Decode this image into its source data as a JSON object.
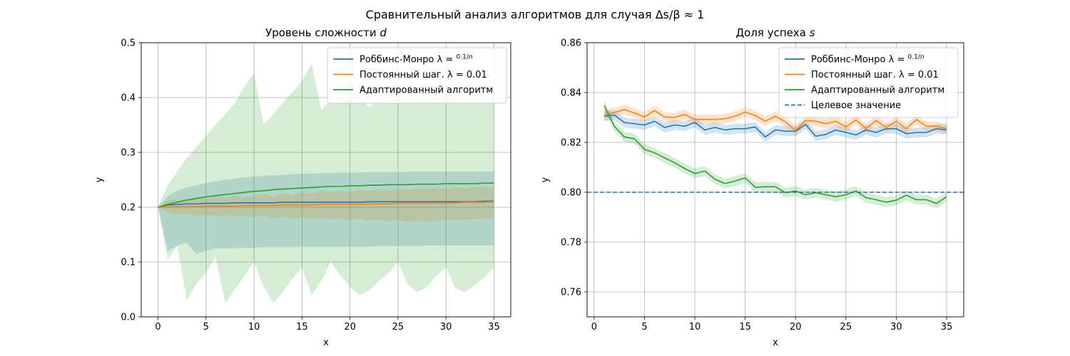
{
  "figure": {
    "suptitle": "Сравнительный анализ алгоритмов для случая Δs/β ≈ 1"
  },
  "colors": {
    "blue": "#1f77b4",
    "orange": "#ff7f0e",
    "green": "#2ca02c",
    "grid": "#b0b0b0",
    "axis": "#000000"
  },
  "chart_data": [
    {
      "type": "line",
      "title": "Уровень сложности d",
      "xlabel": "x",
      "ylabel": "y",
      "xlim": [
        -1.75,
        36.75
      ],
      "ylim": [
        0.0,
        0.5
      ],
      "xticks": [
        0,
        5,
        10,
        15,
        20,
        25,
        30,
        35
      ],
      "yticks": [
        0.0,
        0.1,
        0.2,
        0.3,
        0.4,
        0.5
      ],
      "ytick_labels": [
        "0.0",
        "0.1",
        "0.2",
        "0.3",
        "0.4",
        "0.5"
      ],
      "grid": true,
      "legend_position": "upper right",
      "series": [
        {
          "name": "Роббинс-Монро λ = 0.1/n",
          "color": "#1f77b4",
          "x": [
            0,
            1,
            2,
            3,
            4,
            5,
            6,
            7,
            8,
            9,
            10,
            11,
            12,
            13,
            14,
            15,
            16,
            17,
            18,
            19,
            20,
            21,
            22,
            23,
            24,
            25,
            26,
            27,
            28,
            29,
            30,
            31,
            32,
            33,
            34,
            35
          ],
          "values": [
            0.2,
            0.204,
            0.205,
            0.206,
            0.206,
            0.207,
            0.207,
            0.207,
            0.208,
            0.208,
            0.208,
            0.208,
            0.208,
            0.209,
            0.209,
            0.209,
            0.209,
            0.209,
            0.209,
            0.209,
            0.209,
            0.209,
            0.21,
            0.21,
            0.21,
            0.21,
            0.21,
            0.21,
            0.21,
            0.21,
            0.21,
            0.21,
            0.21,
            0.21,
            0.211,
            0.211
          ],
          "band_upper": [
            0.2,
            0.22,
            0.23,
            0.236,
            0.24,
            0.244,
            0.247,
            0.25,
            0.252,
            0.254,
            0.256,
            0.257,
            0.258,
            0.259,
            0.26,
            0.261,
            0.261,
            0.262,
            0.262,
            0.263,
            0.263,
            0.263,
            0.264,
            0.264,
            0.264,
            0.264,
            0.265,
            0.265,
            0.265,
            0.265,
            0.265,
            0.265,
            0.265,
            0.265,
            0.265,
            0.265
          ],
          "band_lower": [
            0.2,
            0.12,
            0.13,
            0.135,
            0.115,
            0.12,
            0.125,
            0.125,
            0.125,
            0.126,
            0.126,
            0.127,
            0.127,
            0.127,
            0.127,
            0.128,
            0.128,
            0.128,
            0.128,
            0.128,
            0.128,
            0.128,
            0.128,
            0.129,
            0.129,
            0.129,
            0.129,
            0.129,
            0.13,
            0.13,
            0.13,
            0.13,
            0.13,
            0.13,
            0.13,
            0.13
          ]
        },
        {
          "name": "Постоянный шаг. λ = 0.01",
          "color": "#ff7f0e",
          "x": [
            0,
            1,
            2,
            3,
            4,
            5,
            6,
            7,
            8,
            9,
            10,
            11,
            12,
            13,
            14,
            15,
            16,
            17,
            18,
            19,
            20,
            21,
            22,
            23,
            24,
            25,
            26,
            27,
            28,
            29,
            30,
            31,
            32,
            33,
            34,
            35
          ],
          "values": [
            0.2,
            0.2,
            0.201,
            0.201,
            0.201,
            0.202,
            0.202,
            0.202,
            0.202,
            0.203,
            0.203,
            0.203,
            0.203,
            0.204,
            0.204,
            0.204,
            0.204,
            0.205,
            0.205,
            0.205,
            0.205,
            0.205,
            0.206,
            0.206,
            0.206,
            0.207,
            0.207,
            0.207,
            0.207,
            0.208,
            0.208,
            0.208,
            0.209,
            0.209,
            0.209,
            0.21
          ],
          "band_upper": [
            0.2,
            0.212,
            0.215,
            0.214,
            0.218,
            0.215,
            0.22,
            0.217,
            0.222,
            0.218,
            0.221,
            0.224,
            0.22,
            0.226,
            0.222,
            0.228,
            0.225,
            0.23,
            0.227,
            0.23,
            0.228,
            0.232,
            0.229,
            0.233,
            0.23,
            0.234,
            0.231,
            0.235,
            0.232,
            0.236,
            0.233,
            0.237,
            0.234,
            0.237,
            0.235,
            0.238
          ],
          "band_lower": [
            0.2,
            0.19,
            0.186,
            0.188,
            0.184,
            0.187,
            0.183,
            0.186,
            0.182,
            0.185,
            0.181,
            0.184,
            0.18,
            0.183,
            0.179,
            0.182,
            0.178,
            0.181,
            0.177,
            0.18,
            0.176,
            0.179,
            0.175,
            0.178,
            0.174,
            0.177,
            0.173,
            0.176,
            0.172,
            0.175,
            0.178,
            0.176,
            0.177,
            0.178,
            0.179,
            0.18
          ]
        },
        {
          "name": "Адаптированный алгоритм",
          "color": "#2ca02c",
          "x": [
            0,
            1,
            2,
            3,
            4,
            5,
            6,
            7,
            8,
            9,
            10,
            11,
            12,
            13,
            14,
            15,
            16,
            17,
            18,
            19,
            20,
            21,
            22,
            23,
            24,
            25,
            26,
            27,
            28,
            29,
            30,
            31,
            32,
            33,
            34,
            35
          ],
          "values": [
            0.2,
            0.205,
            0.209,
            0.213,
            0.216,
            0.219,
            0.221,
            0.223,
            0.225,
            0.227,
            0.229,
            0.23,
            0.232,
            0.233,
            0.234,
            0.235,
            0.236,
            0.237,
            0.238,
            0.238,
            0.239,
            0.239,
            0.24,
            0.24,
            0.241,
            0.241,
            0.241,
            0.242,
            0.242,
            0.242,
            0.243,
            0.243,
            0.243,
            0.243,
            0.244,
            0.244
          ],
          "band_upper": [
            0.2,
            0.24,
            0.265,
            0.29,
            0.31,
            0.33,
            0.35,
            0.37,
            0.39,
            0.42,
            0.445,
            0.35,
            0.37,
            0.39,
            0.41,
            0.43,
            0.462,
            0.378,
            0.395,
            0.39,
            0.4,
            0.398,
            0.382,
            0.4,
            0.395,
            0.397,
            0.4,
            0.398,
            0.397,
            0.401,
            0.399,
            0.4,
            0.398,
            0.397,
            0.399,
            0.4
          ],
          "band_lower": [
            0.2,
            0.105,
            0.13,
            0.03,
            0.06,
            0.08,
            0.11,
            0.025,
            0.05,
            0.075,
            0.1,
            0.055,
            0.025,
            0.045,
            0.07,
            0.09,
            0.04,
            0.065,
            0.1,
            0.075,
            0.055,
            0.04,
            0.048,
            0.065,
            0.08,
            0.1,
            0.06,
            0.045,
            0.055,
            0.075,
            0.09,
            0.052,
            0.045,
            0.058,
            0.072,
            0.09
          ]
        }
      ]
    },
    {
      "type": "line",
      "title": "Доля успеха s",
      "xlabel": "x",
      "ylabel": "y",
      "xlim": [
        -0.7,
        36.7
      ],
      "ylim": [
        0.75,
        0.86
      ],
      "xticks": [
        0,
        5,
        10,
        15,
        20,
        25,
        30,
        35
      ],
      "yticks": [
        0.76,
        0.78,
        0.8,
        0.82,
        0.84,
        0.86
      ],
      "ytick_labels": [
        "0.76",
        "0.78",
        "0.80",
        "0.82",
        "0.84",
        "0.86"
      ],
      "grid": true,
      "legend_position": "upper right",
      "series": [
        {
          "name": "Роббинс-Монро λ = 0.1/n",
          "color": "#1f77b4",
          "x": [
            1,
            2,
            3,
            4,
            5,
            6,
            7,
            8,
            9,
            10,
            11,
            12,
            13,
            14,
            15,
            16,
            17,
            18,
            19,
            20,
            21,
            22,
            23,
            24,
            25,
            26,
            27,
            28,
            29,
            30,
            31,
            32,
            33,
            34,
            35
          ],
          "values": [
            0.8305,
            0.831,
            0.828,
            0.8275,
            0.827,
            0.8285,
            0.826,
            0.827,
            0.8265,
            0.828,
            0.825,
            0.826,
            0.825,
            0.8255,
            0.8255,
            0.8262,
            0.8222,
            0.825,
            0.8245,
            0.8245,
            0.8272,
            0.8225,
            0.8232,
            0.825,
            0.824,
            0.823,
            0.825,
            0.824,
            0.8255,
            0.8255,
            0.8235,
            0.824,
            0.824,
            0.8255,
            0.825
          ],
          "band_upper": [
            0.8325,
            0.833,
            0.83,
            0.8295,
            0.829,
            0.8305,
            0.828,
            0.829,
            0.8285,
            0.83,
            0.827,
            0.828,
            0.827,
            0.8275,
            0.8275,
            0.8282,
            0.8242,
            0.827,
            0.8265,
            0.8265,
            0.8292,
            0.8245,
            0.8252,
            0.827,
            0.826,
            0.825,
            0.827,
            0.826,
            0.8275,
            0.8275,
            0.8255,
            0.826,
            0.826,
            0.8275,
            0.827
          ],
          "band_lower": [
            0.8285,
            0.829,
            0.826,
            0.8255,
            0.825,
            0.8265,
            0.824,
            0.825,
            0.8245,
            0.826,
            0.823,
            0.824,
            0.823,
            0.8235,
            0.8235,
            0.8242,
            0.8202,
            0.823,
            0.8225,
            0.8225,
            0.8252,
            0.8205,
            0.8212,
            0.823,
            0.822,
            0.821,
            0.823,
            0.822,
            0.8235,
            0.8235,
            0.8215,
            0.822,
            0.822,
            0.8235,
            0.823
          ]
        },
        {
          "name": "Постоянный шаг. λ = 0.01",
          "color": "#ff7f0e",
          "x": [
            1,
            2,
            3,
            4,
            5,
            6,
            7,
            8,
            9,
            10,
            11,
            12,
            13,
            14,
            15,
            16,
            17,
            18,
            19,
            20,
            21,
            22,
            23,
            24,
            25,
            26,
            27,
            28,
            29,
            30,
            31,
            32,
            33,
            34,
            35
          ],
          "values": [
            0.831,
            0.832,
            0.8332,
            0.8318,
            0.8302,
            0.8328,
            0.8302,
            0.83,
            0.8312,
            0.8292,
            0.8292,
            0.8292,
            0.8295,
            0.8305,
            0.8322,
            0.8308,
            0.8285,
            0.8305,
            0.8282,
            0.8248,
            0.8288,
            0.8285,
            0.8275,
            0.8285,
            0.8262,
            0.829,
            0.8255,
            0.8288,
            0.826,
            0.8285,
            0.8255,
            0.8292,
            0.8265,
            0.8265,
            0.8255
          ],
          "band_upper": [
            0.833,
            0.834,
            0.8352,
            0.8338,
            0.8322,
            0.8348,
            0.8322,
            0.832,
            0.8332,
            0.8312,
            0.8312,
            0.8312,
            0.8315,
            0.8325,
            0.8342,
            0.8328,
            0.8305,
            0.8325,
            0.8302,
            0.8268,
            0.8308,
            0.8305,
            0.8295,
            0.8305,
            0.8282,
            0.831,
            0.8275,
            0.8308,
            0.828,
            0.8305,
            0.8275,
            0.8312,
            0.8285,
            0.8285,
            0.8275
          ],
          "band_lower": [
            0.829,
            0.83,
            0.8312,
            0.8298,
            0.8282,
            0.8308,
            0.8282,
            0.828,
            0.8292,
            0.8272,
            0.8272,
            0.8272,
            0.8275,
            0.8285,
            0.8302,
            0.8288,
            0.8265,
            0.8285,
            0.8262,
            0.8228,
            0.8268,
            0.8265,
            0.8255,
            0.8265,
            0.8242,
            0.827,
            0.8235,
            0.8268,
            0.824,
            0.8265,
            0.8235,
            0.8272,
            0.8245,
            0.8245,
            0.8235
          ]
        },
        {
          "name": "Адаптированный алгоритм",
          "color": "#2ca02c",
          "x": [
            1,
            2,
            3,
            4,
            5,
            6,
            7,
            8,
            9,
            10,
            11,
            12,
            13,
            14,
            15,
            16,
            17,
            18,
            19,
            20,
            21,
            22,
            23,
            24,
            25,
            26,
            27,
            28,
            29,
            30,
            31,
            32,
            33,
            34,
            35
          ],
          "values": [
            0.8348,
            0.8265,
            0.8222,
            0.8215,
            0.8172,
            0.8158,
            0.8138,
            0.8118,
            0.8095,
            0.8075,
            0.8085,
            0.8052,
            0.8035,
            0.8045,
            0.8058,
            0.802,
            0.8022,
            0.8022,
            0.7998,
            0.8005,
            0.799,
            0.7998,
            0.799,
            0.7982,
            0.799,
            0.8005,
            0.7978,
            0.797,
            0.796,
            0.7968,
            0.7988,
            0.797,
            0.797,
            0.7955,
            0.7982
          ],
          "band_upper": [
            0.8368,
            0.8285,
            0.8242,
            0.8235,
            0.8192,
            0.8178,
            0.8158,
            0.8138,
            0.8115,
            0.8095,
            0.8105,
            0.8072,
            0.8055,
            0.8065,
            0.8078,
            0.804,
            0.8042,
            0.8042,
            0.8018,
            0.8025,
            0.801,
            0.8018,
            0.801,
            0.8002,
            0.801,
            0.8025,
            0.7998,
            0.799,
            0.798,
            0.7988,
            0.8008,
            0.799,
            0.799,
            0.7975,
            0.8002
          ],
          "band_lower": [
            0.8328,
            0.8245,
            0.8202,
            0.8195,
            0.8152,
            0.8138,
            0.8118,
            0.8098,
            0.8075,
            0.8055,
            0.8065,
            0.8032,
            0.8015,
            0.8025,
            0.8038,
            0.8,
            0.8002,
            0.8002,
            0.7978,
            0.7985,
            0.797,
            0.7978,
            0.797,
            0.7962,
            0.797,
            0.7985,
            0.7958,
            0.795,
            0.794,
            0.7948,
            0.7968,
            0.795,
            0.795,
            0.7935,
            0.7962
          ]
        },
        {
          "name": "Целевое значение",
          "color": "#1f77b4",
          "style": "dashed",
          "constant": 0.8
        }
      ]
    }
  ]
}
